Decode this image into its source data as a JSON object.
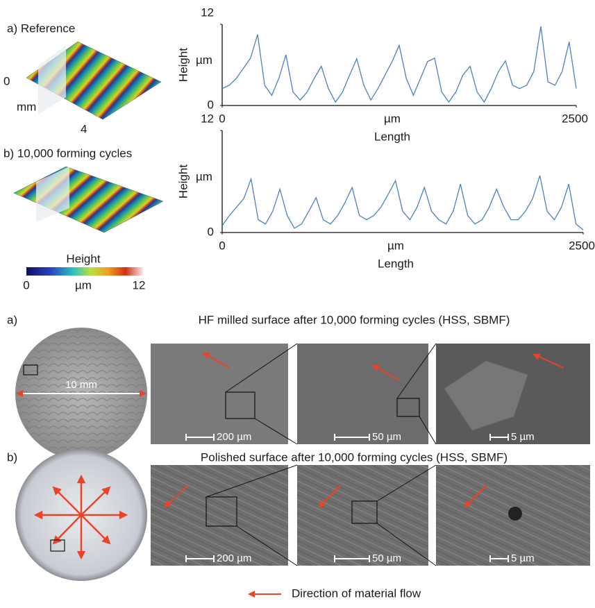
{
  "surfaces": {
    "a_label": "a) Reference",
    "b_label": "b) 10,000 forming cycles",
    "axis_zero": "0",
    "axis_unit": "mm",
    "axis_four": "4",
    "colorbar": {
      "title": "Height",
      "min": "0",
      "unit": "µm",
      "max": "12"
    }
  },
  "chart_data": [
    {
      "type": "line",
      "y_label": "Height",
      "y_unit": "µm",
      "x_label": "Length",
      "x_unit": "µm",
      "xlim": [
        0,
        2500
      ],
      "ylim": [
        0,
        12
      ],
      "xticks": [
        0,
        2500
      ],
      "yticks": [
        0,
        12
      ],
      "x": [
        0,
        50,
        100,
        150,
        200,
        250,
        300,
        350,
        400,
        450,
        500,
        550,
        600,
        650,
        700,
        750,
        800,
        850,
        900,
        950,
        1000,
        1050,
        1100,
        1150,
        1200,
        1250,
        1300,
        1350,
        1400,
        1450,
        1500,
        1550,
        1600,
        1650,
        1700,
        1750,
        1800,
        1850,
        1900,
        1950,
        2000,
        2050,
        2100,
        2150,
        2200,
        2250,
        2300,
        2350,
        2400,
        2450,
        2500
      ],
      "series": [
        {
          "color": "#4a80c4",
          "values": [
            2.5,
            3,
            4,
            5.5,
            7,
            10.5,
            3,
            1.5,
            4,
            7.5,
            2,
            0.8,
            2,
            4,
            5.8,
            2.5,
            0.5,
            2,
            4.5,
            6.9,
            3,
            0.8,
            2.5,
            4.5,
            6.5,
            8.9,
            4,
            1.5,
            4,
            6.5,
            7,
            2,
            0.5,
            2,
            4.5,
            5.8,
            2,
            0.5,
            2.5,
            5,
            6.6,
            3,
            2.5,
            3,
            5,
            11.7,
            3.5,
            3,
            5,
            9.4,
            2.5
          ]
        }
      ]
    },
    {
      "type": "line",
      "y_label": "Height",
      "y_unit": "µm",
      "x_label": "Length",
      "x_unit": "µm",
      "xlim": [
        0,
        2500
      ],
      "ylim": [
        0,
        12
      ],
      "xticks": [
        0,
        2500
      ],
      "yticks": [
        0,
        12
      ],
      "x": [
        0,
        50,
        100,
        150,
        200,
        250,
        300,
        350,
        400,
        450,
        500,
        550,
        600,
        650,
        700,
        750,
        800,
        850,
        900,
        950,
        1000,
        1050,
        1100,
        1150,
        1200,
        1250,
        1300,
        1350,
        1400,
        1450,
        1500,
        1550,
        1600,
        1650,
        1700,
        1750,
        1800,
        1850,
        1900,
        1950,
        2000,
        2050,
        2100,
        2150,
        2200,
        2250,
        2300,
        2350,
        2400,
        2450,
        2500
      ],
      "series": [
        {
          "color": "#4a80c4",
          "values": [
            0.8,
            2,
            3,
            4,
            6.3,
            1.5,
            1,
            2.5,
            5.1,
            2,
            0.5,
            1,
            2.5,
            4.1,
            1.5,
            1,
            2,
            3.5,
            5.3,
            2,
            1.5,
            2,
            3,
            4.5,
            6.1,
            2.5,
            1.5,
            3,
            5.3,
            2.5,
            1.5,
            1,
            2.5,
            5.7,
            2,
            1,
            1.5,
            3,
            5.1,
            3,
            1.5,
            1.5,
            2.5,
            4,
            6.7,
            2.5,
            1.5,
            3,
            5.7,
            1,
            0.3
          ]
        }
      ]
    }
  ],
  "sem": {
    "a_label": "a)",
    "a_caption": "HF milled surface after 10,000 forming cycles (HSS, SBMF)",
    "diameter": "10 mm",
    "a_scales": [
      "200 µm",
      "50 µm",
      "5 µm"
    ],
    "b_label": "b)",
    "b_caption": "Polished surface after 10,000 forming cycles (HSS, SBMF)",
    "b_scales": [
      "200 µm",
      "50 µm",
      "5 µm"
    ],
    "legend": "Direction of material flow"
  }
}
